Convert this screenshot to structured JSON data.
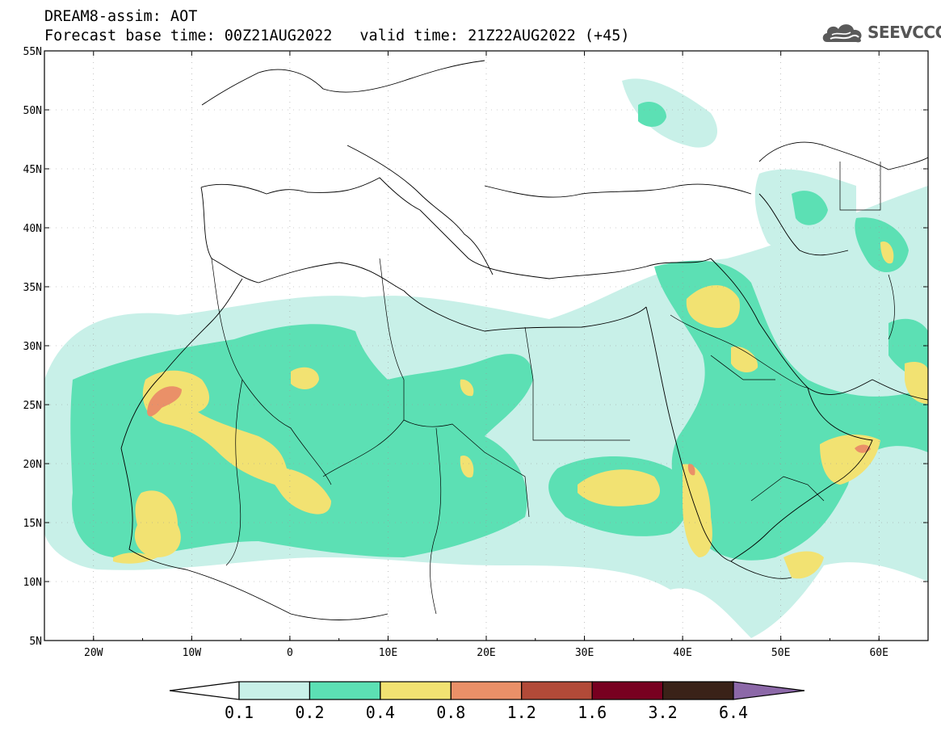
{
  "header": {
    "line1": "DREAM8-assim: AOT",
    "base_time_label": "Forecast base time: 00Z21AUG2022",
    "valid_time_label": "valid time: 21Z22AUG2022 (+45)"
  },
  "logo": {
    "text": "SEEVCCC",
    "icon": "cloud-icon"
  },
  "map": {
    "variable": "AOT",
    "lat_labels": [
      "55N",
      "50N",
      "45N",
      "40N",
      "35N",
      "30N",
      "25N",
      "20N",
      "15N",
      "10N",
      "5N"
    ],
    "lon_labels": [
      "20W",
      "10W",
      "0",
      "10E",
      "20E",
      "30E",
      "40E",
      "50E",
      "60E"
    ],
    "lat_range": [
      5,
      55
    ],
    "lon_range": [
      -25,
      65
    ]
  },
  "colorbar": {
    "levels": [
      "0.1",
      "0.2",
      "0.4",
      "0.8",
      "1.2",
      "1.6",
      "3.2",
      "6.4"
    ],
    "colors": [
      "#c8f0e8",
      "#5ce0b4",
      "#f2e272",
      "#ea9068",
      "#b24a38",
      "#780020",
      "#3a2218",
      "#8c68a8"
    ]
  }
}
